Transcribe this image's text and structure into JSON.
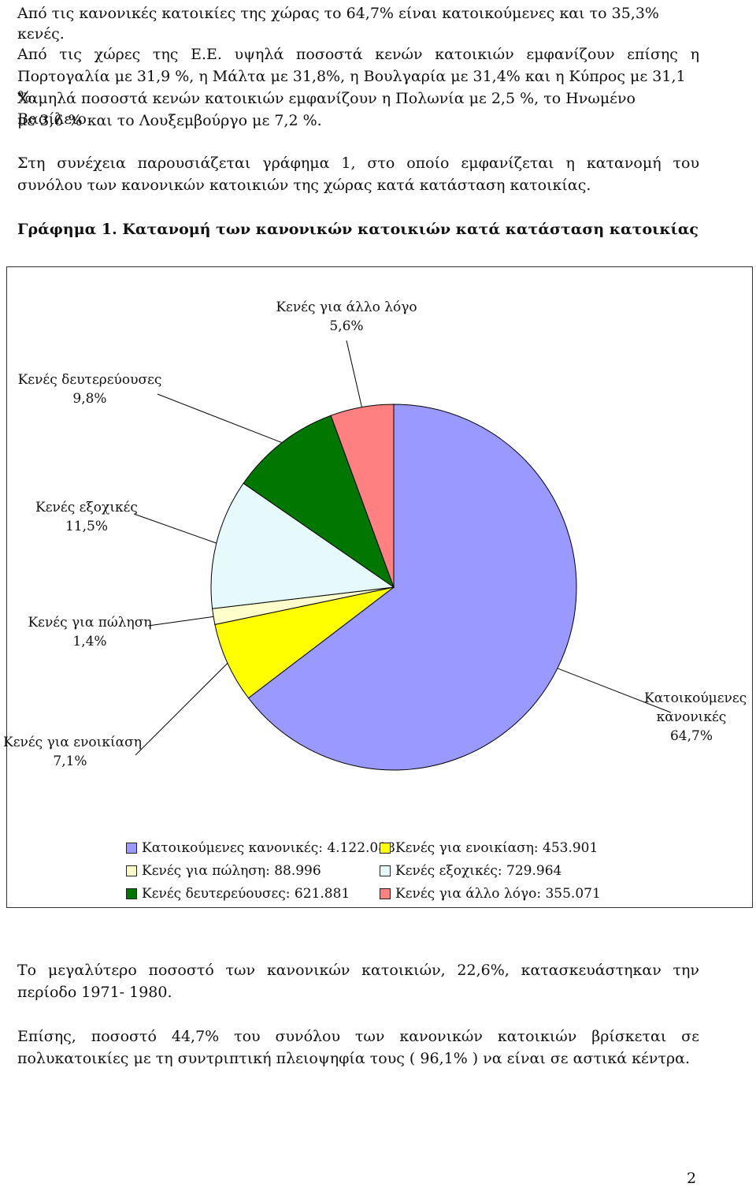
{
  "text": {
    "line_1": "Από τις κανονικές κατοικίες της χώρας το 64,7% είναι κατοικούμενες και το 35,3% κενές.",
    "para_2_a": "Από τις χώρες της Ε.Ε. υψηλά ποσοστά κενών κατοικιών εμφανίζουν επίσης η",
    "para_2_b": "Πορτογαλία με 31,9 %, η Μάλτα με 31,8%, η Βουλγαρία με 31,4% και η Κύπρος με 31,1 %.",
    "para_2_c": "Χαμηλά ποσοστά κενών κατοικιών εμφανίζουν η Πολωνία με 2,5 %, το Ηνωμένο Βασίλειο",
    "para_2_d": "με 3,6 % και το Λουξεμβούργο με 7,2 %.",
    "para_3_a": "Στη συνέχεια παρουσιάζεται γράφημα 1, στο οποίο εμφανίζεται η κατανομή του",
    "para_3_b": "συνόλου των κανονικών κατοικιών της χώρας κατά κατάσταση κατοικίας.",
    "figure_caption": "Γράφημα 1. Κατανομή των κανονικών κατοικιών κατά κατάσταση κατοικίας",
    "para_4_a": "Το μεγαλύτερο ποσοστό των κανονικών κατοικιών, 22,6%, κατασκευάστηκαν την",
    "para_4_b": "περίοδο 1971- 1980.",
    "para_5_a": "Επίσης, ποσοστό 44,7% του συνόλου των κανονικών κατοικιών βρίσκεται σε",
    "para_5_b": "πολυκατοικίες με τη συντριπτική πλειοψηφία τους ( 96,1% ) να είναι σε αστικά κέντρα.",
    "page_number": "2"
  },
  "chart_data": {
    "type": "pie",
    "slices": [
      {
        "label_line1": "Κατοικούμενες",
        "label_line2": "κανονικές",
        "percent_label": "64,7%",
        "value": 64.7,
        "legend": "Κατοικούμενες κανονικές: 4.122.088",
        "color": "#9999ff"
      },
      {
        "label_line1": "Κενές για ενοικίαση",
        "label_line2": "",
        "percent_label": "7,1%",
        "value": 7.1,
        "legend": "Κενές για ενοικίαση: 453.901",
        "color": "#ffff00"
      },
      {
        "label_line1": "Κενές για πώληση",
        "label_line2": "",
        "percent_label": "1,4%",
        "value": 1.4,
        "legend": "Κενές για πώληση: 88.996",
        "color": "#ffffcc"
      },
      {
        "label_line1": "Κενές εξοχικές",
        "label_line2": "",
        "percent_label": "11,5%",
        "value": 11.5,
        "legend": "Κενές εξοχικές: 729.964",
        "color": "#e6f9fb"
      },
      {
        "label_line1": "Κενές δευτερεύουσες",
        "label_line2": "",
        "percent_label": "9,8%",
        "value": 9.8,
        "legend": "Κενές δευτερεύουσες: 621.881",
        "color": "#007700"
      },
      {
        "label_line1": "Κενές για άλλο λόγο",
        "label_line2": "",
        "percent_label": "5,6%",
        "value": 5.6,
        "legend": "Κενές για άλλο λόγο: 355.071",
        "color": "#ff8080"
      }
    ],
    "legend_placement": "bottom",
    "start_direction": "top",
    "order": "clockwise"
  }
}
